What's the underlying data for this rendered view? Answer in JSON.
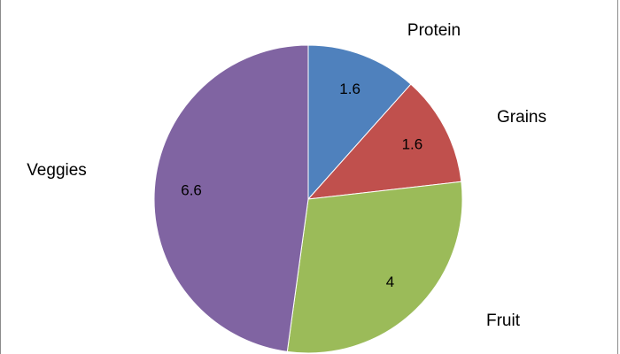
{
  "chart_data": {
    "type": "pie",
    "title": "",
    "categories": [
      "Protein",
      "Grains",
      "Fruit",
      "Veggies"
    ],
    "values": [
      1.6,
      1.6,
      4,
      6.6
    ],
    "value_labels": [
      "1.6",
      "1.6",
      "4",
      "6.6"
    ],
    "colors": [
      "#4f81bd",
      "#c0504d",
      "#9bbb59",
      "#8064a2"
    ],
    "start_angle_deg": 0,
    "direction": "clockwise",
    "legend": "none",
    "grid": false
  }
}
